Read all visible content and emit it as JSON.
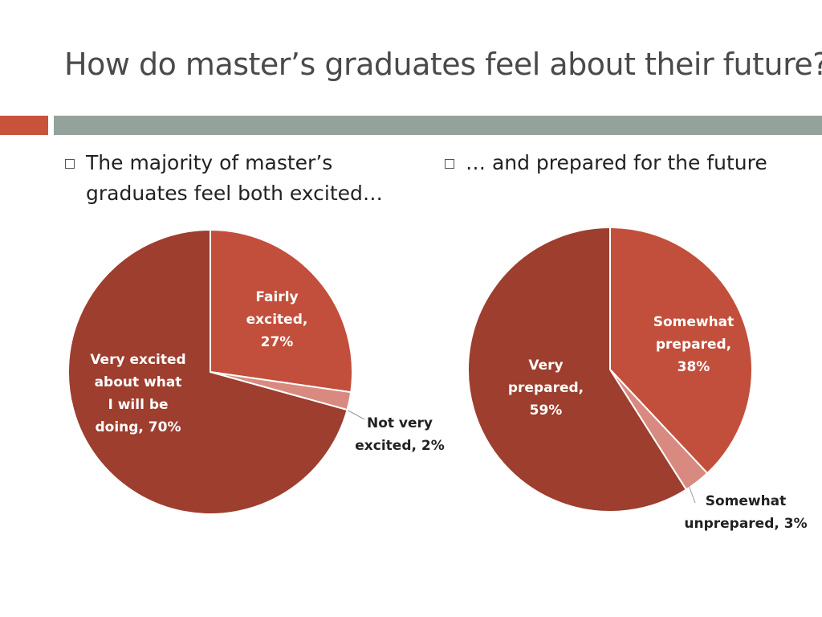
{
  "slide": {
    "title": "How do master’s graduates feel about their future?",
    "bullets": [
      "The majority of master’s graduates feel both excited…",
      "… and prepared for the future"
    ]
  },
  "colors": {
    "accent_bar": "#c8533b",
    "main_bar": "#93a39c",
    "label_dark": "#ffffff",
    "label_light": "#222222"
  },
  "chart_data": [
    {
      "type": "pie",
      "slices": [
        {
          "label_lines": [
            "Fairly",
            "excited,",
            "27%"
          ],
          "value": 27,
          "color": "#c24f3b",
          "label_color": "#ffffff",
          "label_position": "inside"
        },
        {
          "label_lines": [
            "Not very",
            "excited, 2%"
          ],
          "value": 2,
          "color": "#d98a80",
          "label_color": "#222222",
          "label_position": "outside"
        },
        {
          "label_lines": [
            "Very excited",
            "about what",
            "I will be",
            "doing, 70%"
          ],
          "value": 70,
          "color": "#9d3e2e",
          "label_color": "#ffffff",
          "label_position": "inside"
        }
      ]
    },
    {
      "type": "pie",
      "slices": [
        {
          "label_lines": [
            "Somewhat",
            "prepared,",
            "38%"
          ],
          "value": 38,
          "color": "#c24f3b",
          "label_color": "#ffffff",
          "label_position": "inside"
        },
        {
          "label_lines": [
            "Somewhat",
            "unprepared, 3%"
          ],
          "value": 3,
          "color": "#d98a80",
          "label_color": "#222222",
          "label_position": "outside"
        },
        {
          "label_lines": [
            "Very",
            "prepared,",
            "59%"
          ],
          "value": 59,
          "color": "#9d3e2e",
          "label_color": "#ffffff",
          "label_position": "inside"
        }
      ]
    }
  ]
}
